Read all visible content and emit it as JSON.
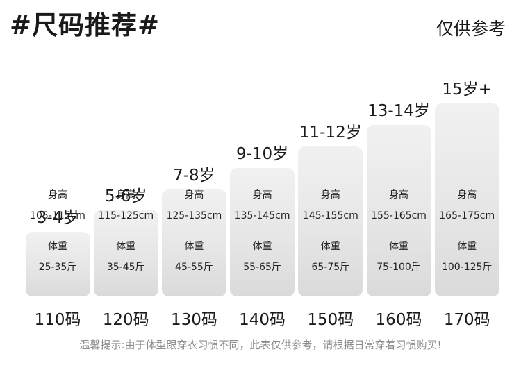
{
  "title": "#尺码推荐#",
  "note": "仅供参考",
  "footer": "温馨提示:由于体型跟穿衣习惯不同，此表仅供参考，请根据日常穿着习惯购买!",
  "labels": {
    "height": "身高",
    "weight": "体重"
  },
  "chart_data": {
    "type": "bar",
    "categories": [
      "110码",
      "120码",
      "130码",
      "140码",
      "150码",
      "160码",
      "170码"
    ],
    "ages": [
      "3-4岁",
      "5-6岁",
      "7-8岁",
      "9-10岁",
      "11-12岁",
      "13-14岁",
      "15岁+"
    ],
    "heights": [
      "105-115cm",
      "115-125cm",
      "125-135cm",
      "135-145cm",
      "145-155cm",
      "155-165cm",
      "165-175cm"
    ],
    "weights": [
      "25-35斤",
      "35-45斤",
      "45-55斤",
      "55-65斤",
      "65-75斤",
      "75-100斤",
      "100-125斤"
    ],
    "values": [
      110,
      120,
      130,
      140,
      150,
      160,
      170
    ],
    "ylim": [
      80,
      175
    ]
  },
  "colors": {
    "bar_top": "#f1f1f1",
    "bar_bottom": "#dadada",
    "text": "#1a1a1a",
    "footer": "#8c8c8c"
  }
}
